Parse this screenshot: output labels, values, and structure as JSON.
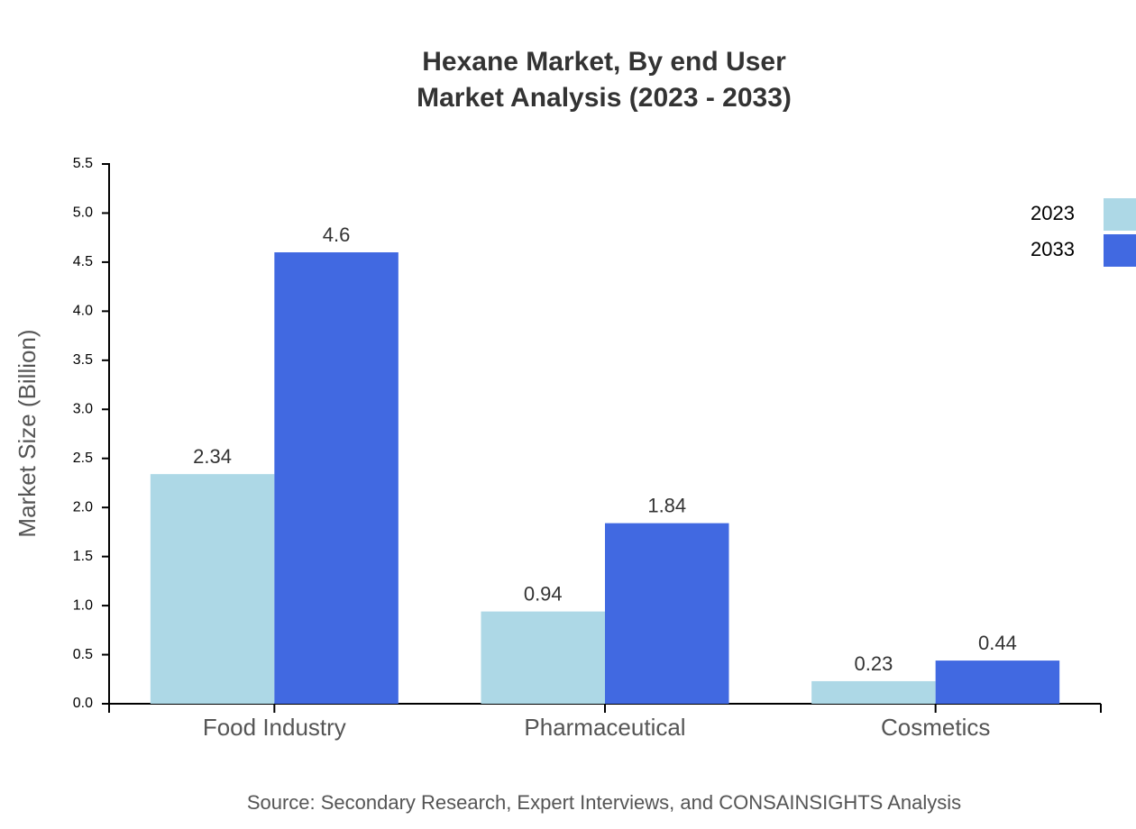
{
  "chart_data": {
    "type": "bar",
    "title": "Hexane Market, By end User",
    "subtitle": "Market Analysis (2023 - 2033)",
    "y_label": "Market Size (Billion)",
    "source": "Source: Secondary Research, Expert Interviews, and CONSAINSIGHTS Analysis",
    "categories": [
      "Food Industry",
      "Pharmaceutical",
      "Cosmetics"
    ],
    "series": [
      {
        "name": "2023",
        "color": "#add8e6",
        "values": [
          2.34,
          0.94,
          0.23
        ]
      },
      {
        "name": "2033",
        "color": "#4169e1",
        "values": [
          4.6,
          1.84,
          0.44
        ]
      }
    ],
    "ylim": [
      0,
      5.5
    ],
    "yticks": [
      {
        "value": 0,
        "label": "0.0"
      },
      0.5,
      {
        "value": 1,
        "label": "1.0"
      },
      1.5,
      {
        "value": 2,
        "label": "2.0"
      },
      2.5,
      {
        "value": 3,
        "label": "3.0"
      },
      3.5,
      {
        "value": 4,
        "label": "4.0"
      },
      4.5,
      {
        "value": 5,
        "label": "5.0"
      },
      5.5
    ],
    "legend_position": "top-right",
    "grid": false
  }
}
